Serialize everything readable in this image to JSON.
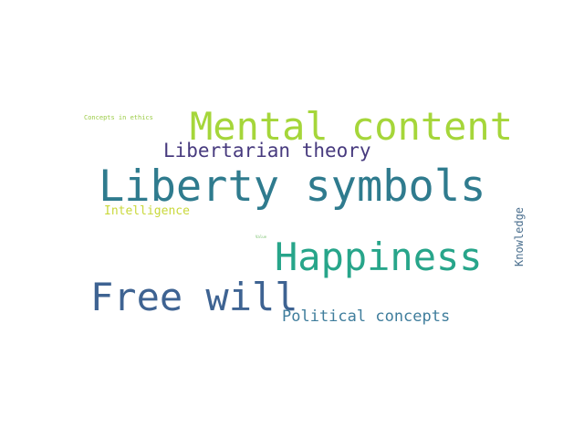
{
  "words": {
    "liberty_symbols": {
      "text": "Liberty symbols",
      "color": "#2f7b8e"
    },
    "mental_content": {
      "text": "Mental content",
      "color": "#a5d63a"
    },
    "happiness": {
      "text": "Happiness",
      "color": "#27a58a"
    },
    "free_will": {
      "text": "Free will",
      "color": "#3e6392"
    },
    "libertarian_theory": {
      "text": "Libertarian theory",
      "color": "#473a7e"
    },
    "political_concepts": {
      "text": "Political concepts",
      "color": "#3f7d9c"
    },
    "intelligence": {
      "text": "Intelligence",
      "color": "#c9d83a"
    },
    "concepts_in_ethics": {
      "text": "Concepts in ethics",
      "color": "#9ccc48"
    },
    "value": {
      "text": "Value",
      "color": "#7cc270"
    },
    "knowledge": {
      "text": "Knowledge",
      "color": "#4b6f8e"
    }
  }
}
